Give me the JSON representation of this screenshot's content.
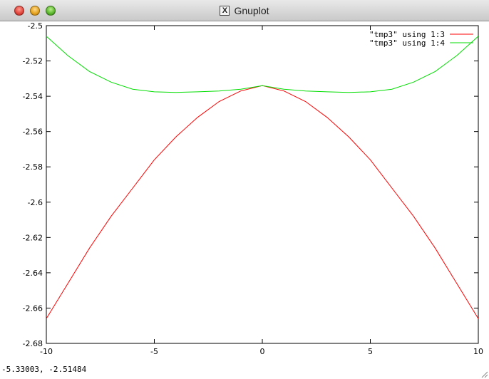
{
  "window": {
    "title": "Gnuplot",
    "title_icon": "x11-icon",
    "status_text": "-5.33003, -2.51484"
  },
  "colors": {
    "series_1": "#ff0000",
    "series_2": "#00dd00"
  },
  "chart_data": {
    "type": "line",
    "xlim": [
      -10,
      10
    ],
    "ylim": [
      -2.68,
      -2.5
    ],
    "xticks": [
      "-10",
      "-5",
      "0",
      "5",
      "10"
    ],
    "xtick_values": [
      -10,
      -5,
      0,
      5,
      10
    ],
    "yticks": [
      "-2.5",
      "-2.52",
      "-2.54",
      "-2.56",
      "-2.58",
      "-2.6",
      "-2.62",
      "-2.64",
      "-2.66",
      "-2.68"
    ],
    "ytick_values": [
      -2.5,
      -2.52,
      -2.54,
      -2.56,
      -2.58,
      -2.6,
      -2.62,
      -2.64,
      -2.66,
      -2.68
    ],
    "legend_position": "top-right",
    "grid": false,
    "series": [
      {
        "name": "\"tmp3\" using 1:3",
        "color": "#ff0000",
        "x": [
          -10,
          -9,
          -8,
          -7,
          -6,
          -5,
          -4,
          -3,
          -2,
          -1,
          0,
          1,
          2,
          3,
          4,
          5,
          6,
          7,
          8,
          9,
          10
        ],
        "y": [
          -2.666,
          -2.646,
          -2.626,
          -2.608,
          -2.592,
          -2.576,
          -2.563,
          -2.552,
          -2.543,
          -2.537,
          -2.534,
          -2.537,
          -2.543,
          -2.552,
          -2.563,
          -2.576,
          -2.592,
          -2.608,
          -2.626,
          -2.646,
          -2.666
        ]
      },
      {
        "name": "\"tmp3\" using 1:4",
        "color": "#00dd00",
        "x": [
          -10,
          -9,
          -8,
          -7,
          -6,
          -5,
          -4,
          -3,
          -2,
          -1,
          0,
          1,
          2,
          3,
          4,
          5,
          6,
          7,
          8,
          9,
          10
        ],
        "y": [
          -2.506,
          -2.517,
          -2.526,
          -2.532,
          -2.536,
          -2.5375,
          -2.5378,
          -2.5375,
          -2.537,
          -2.536,
          -2.534,
          -2.536,
          -2.537,
          -2.5375,
          -2.5378,
          -2.5375,
          -2.536,
          -2.532,
          -2.526,
          -2.517,
          -2.506
        ]
      }
    ]
  }
}
